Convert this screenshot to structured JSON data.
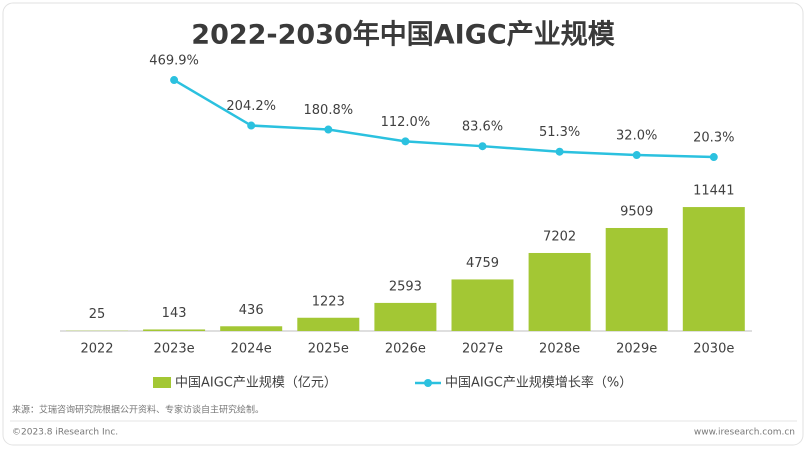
{
  "chart_data": {
    "type": "bar-line",
    "title": "2022-2030年中国AIGC产业规模",
    "categories": [
      "2022",
      "2023e",
      "2024e",
      "2025e",
      "2026e",
      "2027e",
      "2028e",
      "2029e",
      "2030e"
    ],
    "series": [
      {
        "name": "中国AIGC产业规模（亿元）",
        "type": "bar",
        "color": "#a3c734",
        "values": [
          25,
          143,
          436,
          1223,
          2593,
          4759,
          7202,
          9509,
          11441
        ]
      },
      {
        "name": "中国AIGC产业规模增长率（%）",
        "type": "line",
        "axis": "y2",
        "color": "#2bc1df",
        "values": [
          null,
          469.9,
          204.2,
          180.8,
          112.0,
          83.6,
          51.3,
          32.0,
          20.3
        ],
        "value_labels": [
          null,
          "469.9%",
          "204.2%",
          "180.8%",
          "112.0%",
          "83.6%",
          "51.3%",
          "32.0%",
          "20.3%"
        ]
      }
    ],
    "ylim": [
      0,
      12000
    ],
    "y2lim": [
      0,
      500
    ],
    "legend": "bottom"
  },
  "footer": {
    "source": "来源：艾瑞咨询研究院根据公开资料、专家访谈自主研究绘制。",
    "copyright": "©2023.8 iResearch Inc.",
    "website": "www.iresearch.com.cn"
  }
}
